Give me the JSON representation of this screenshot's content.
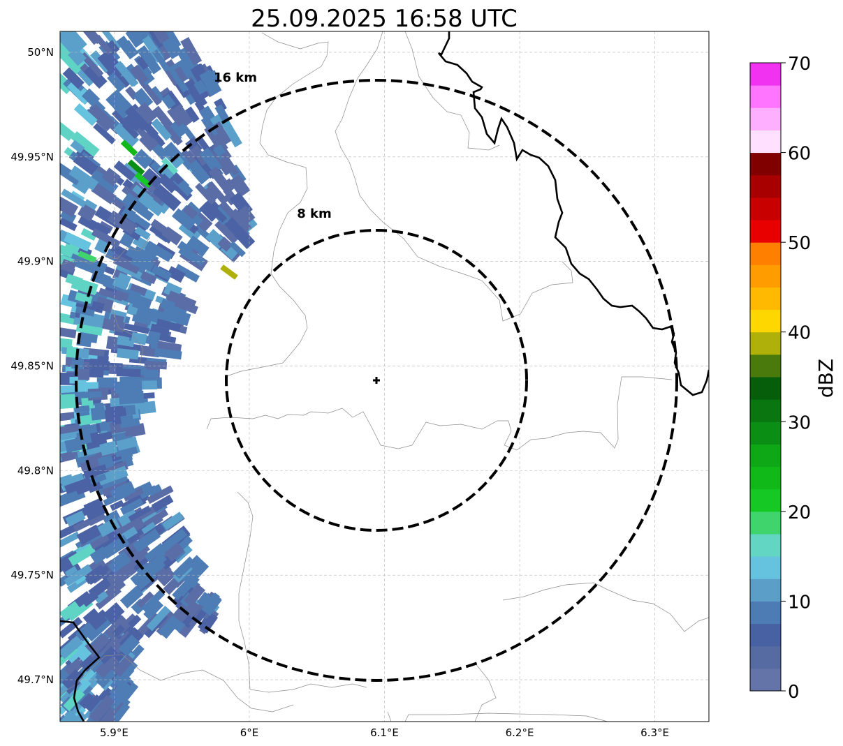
{
  "title": "25.09.2025 16:58 UTC",
  "map": {
    "lon_range": [
      5.86,
      6.34
    ],
    "lat_range": [
      49.68,
      50.01
    ],
    "lon_ticks": [
      5.9,
      6.0,
      6.1,
      6.2,
      6.3
    ],
    "lon_tick_labels": [
      "5.9°E",
      "6°E",
      "6.1°E",
      "6.2°E",
      "6.3°E"
    ],
    "lat_ticks": [
      50.0,
      49.95,
      49.9,
      49.85,
      49.8,
      49.75,
      49.7
    ],
    "lat_tick_labels": [
      "50°N",
      "49.95°N",
      "49.9°N",
      "49.85°N",
      "49.8°N",
      "49.75°N",
      "49.7°N"
    ],
    "grid": true,
    "radar_site": {
      "lon": 6.095,
      "lat": 49.843,
      "symbol": "cross"
    },
    "range_rings": [
      {
        "radius_km": 8,
        "label": "8 km"
      },
      {
        "radius_km": 16,
        "label": "16 km"
      }
    ]
  },
  "colorbar": {
    "label": "dBZ",
    "min": 0,
    "max": 70,
    "step": 2.5,
    "tick_values": [
      0,
      10,
      20,
      30,
      40,
      50,
      60,
      70
    ],
    "tick_labels": [
      "0",
      "10",
      "20",
      "30",
      "40",
      "50",
      "60",
      "70"
    ],
    "colors": [
      "#6574a8",
      "#566ba2",
      "#4861a3",
      "#4d7bb3",
      "#5b9fc9",
      "#66c3df",
      "#62d6c3",
      "#3fd46c",
      "#15c823",
      "#10b918",
      "#0ea716",
      "#0b8e14",
      "#09760f",
      "#065e0b",
      "#497a0b",
      "#b0b00a",
      "#ffd700",
      "#ffb900",
      "#ff9c00",
      "#ff7f00",
      "#e80000",
      "#c80000",
      "#a80000",
      "#800000",
      "#ffe1ff",
      "#ffafff",
      "#ff75ff",
      "#f133f1"
    ]
  },
  "echo_color_ids": [
    "#5a6da6",
    "#4b63a5",
    "#4e7db5",
    "#5aa0ca",
    "#66c3df",
    "#5fd3c4"
  ]
}
